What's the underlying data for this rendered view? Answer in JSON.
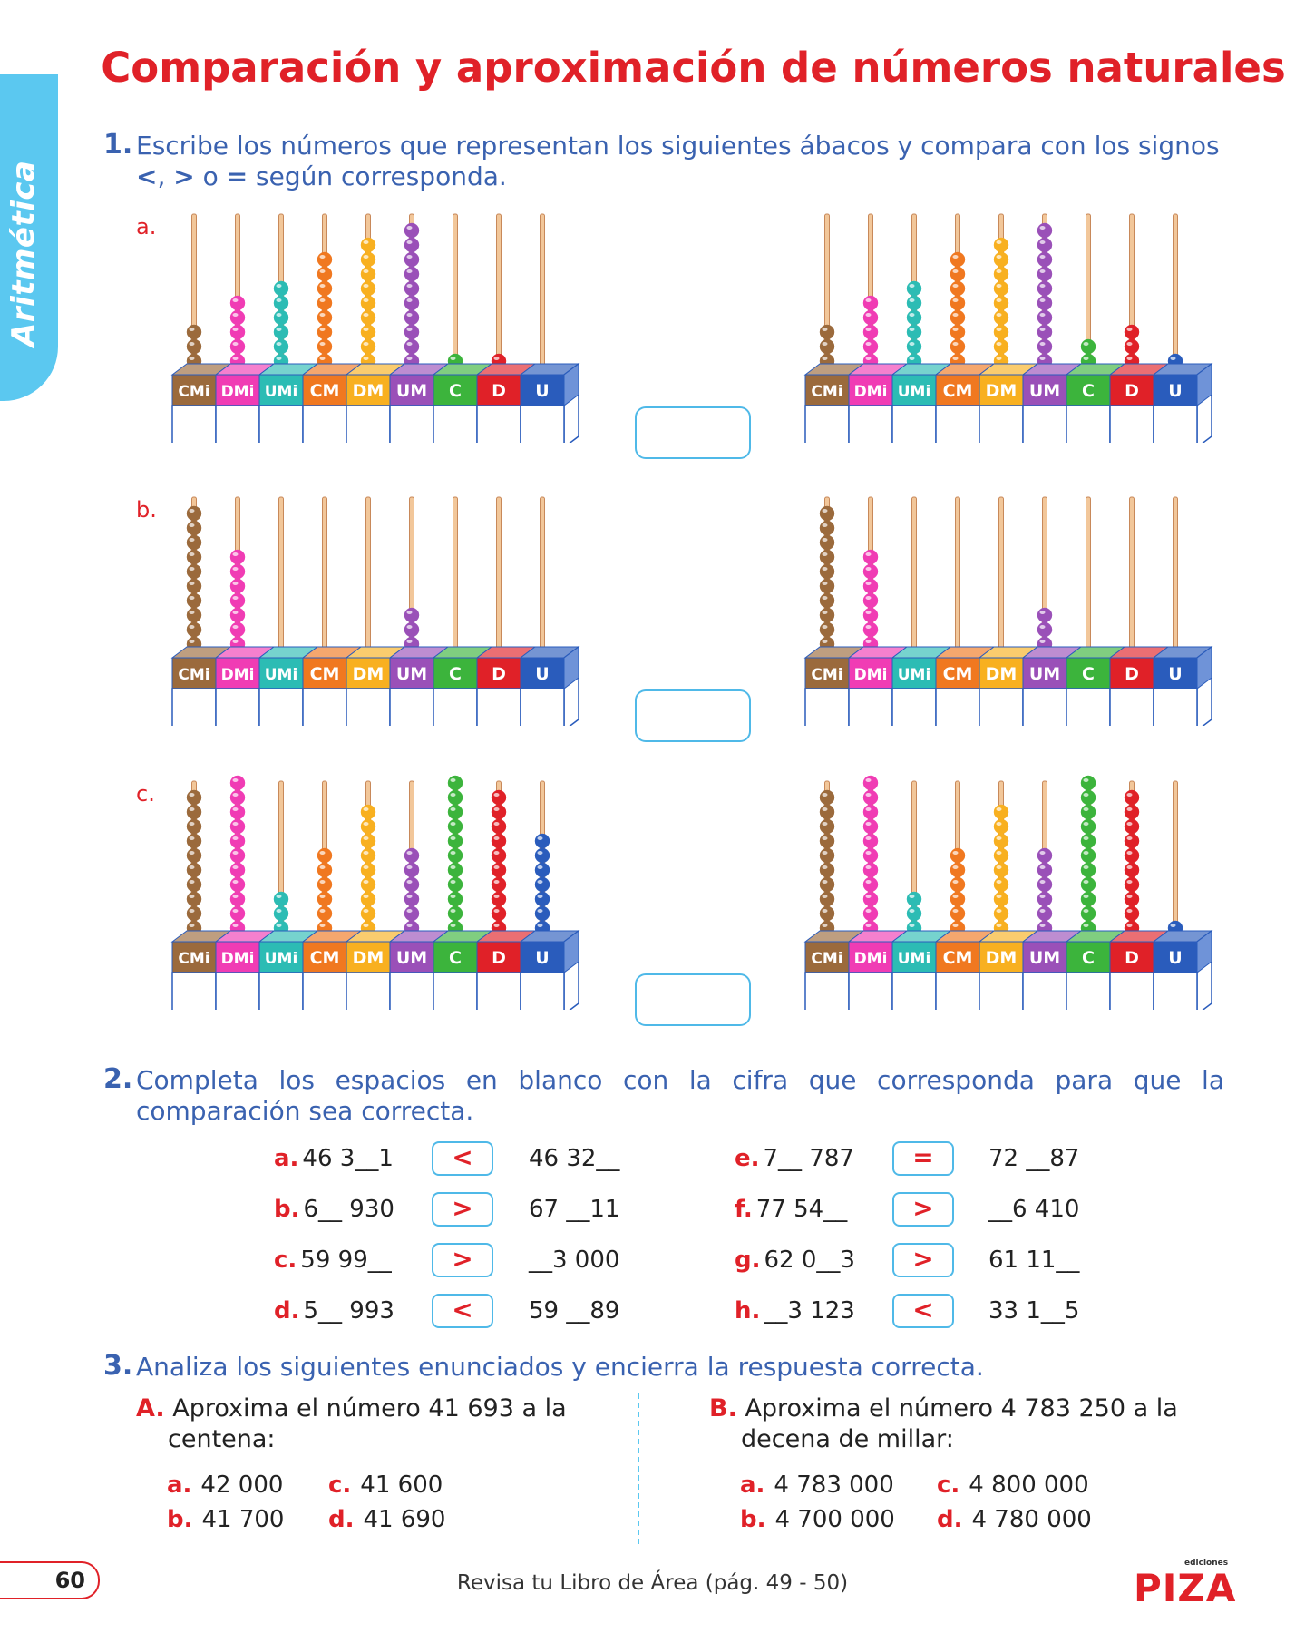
{
  "side_tab": "Aritmética",
  "title": "Comparación y aproximación de números naturales",
  "q1": {
    "number": "1.",
    "text_a": "Escribe los números que representan los siguientes ábacos y compara con los signos",
    "sym1": "<",
    "sep1": ", ",
    "sym2": ">",
    "mid": " o ",
    "sym3": "=",
    "text_b": " según corresponda.",
    "rods": [
      "CMi",
      "DMi",
      "UMi",
      "CM",
      "DM",
      "UM",
      "C",
      "D",
      "U"
    ],
    "rows": [
      {
        "label": "a.",
        "left": [
          3,
          5,
          6,
          8,
          9,
          10,
          1,
          1,
          0
        ],
        "right": [
          3,
          5,
          6,
          8,
          9,
          10,
          2,
          3,
          1
        ]
      },
      {
        "label": "b.",
        "left": [
          10,
          7,
          0,
          0,
          0,
          3,
          0,
          0,
          0
        ],
        "right": [
          10,
          7,
          0,
          0,
          0,
          3,
          0,
          0,
          0
        ]
      },
      {
        "label": "c.",
        "left": [
          10,
          11,
          3,
          6,
          9,
          6,
          11,
          10,
          7
        ],
        "right": [
          10,
          11,
          3,
          6,
          9,
          6,
          11,
          10,
          1
        ]
      }
    ]
  },
  "colors": {
    "accent_red": "#e02128",
    "accent_blue": "#3a62b0",
    "side_blue": "#5bc8f0",
    "rods": [
      "#9b6a3c",
      "#f03cb4",
      "#2cbcb4",
      "#f07820",
      "#f8b020",
      "#9a50b8",
      "#3cb43c",
      "#e02128",
      "#2a5cbc"
    ]
  },
  "q2": {
    "number": "2.",
    "text": "Completa los espacios en blanco con la cifra que corresponda para que la comparación sea correcta.",
    "items": [
      {
        "letter": "a.",
        "left": "46 3__1",
        "sign": "<",
        "right": "46 32__"
      },
      {
        "letter": "b.",
        "left": "6__ 930",
        "sign": ">",
        "right": "67 __11"
      },
      {
        "letter": "c.",
        "left": "59 99__",
        "sign": ">",
        "right": "__3 000"
      },
      {
        "letter": "d.",
        "left": "5__ 993",
        "sign": "<",
        "right": "59 __89"
      },
      {
        "letter": "e.",
        "left": "7__ 787",
        "sign": "=",
        "right": "72 __87"
      },
      {
        "letter": "f.",
        "left": "77 54__",
        "sign": ">",
        "right": "__6 410"
      },
      {
        "letter": "g.",
        "left": "62 0__3",
        "sign": ">",
        "right": "61 11__"
      },
      {
        "letter": "h.",
        "left": "__3 123",
        "sign": "<",
        "right": "33 1__5"
      }
    ]
  },
  "q3": {
    "number": "3.",
    "text": "Analiza los siguientes enunciados y encierra la respuesta correcta.",
    "A": {
      "letter": "A.",
      "line1": "Aproxima el número 41 693 a la",
      "line2": "centena:",
      "options": [
        {
          "l": "a.",
          "v": "42 000"
        },
        {
          "l": "c.",
          "v": "41 600"
        },
        {
          "l": "b.",
          "v": "41 700"
        },
        {
          "l": "d.",
          "v": "41 690"
        }
      ]
    },
    "B": {
      "letter": "B.",
      "line1": "Aproxima el número 4 783 250 a la",
      "line2": "decena de millar:",
      "options": [
        {
          "l": "a.",
          "v": "4 783 000"
        },
        {
          "l": "c.",
          "v": "4 800 000"
        },
        {
          "l": "b.",
          "v": "4 700 000"
        },
        {
          "l": "d.",
          "v": "4 780 000"
        }
      ]
    }
  },
  "footer": {
    "page_number": "60",
    "text": "Revisa tu Libro de Área (pág. 49 - 50)",
    "logo_small": "ediciones",
    "logo_brand": "PIZA"
  }
}
